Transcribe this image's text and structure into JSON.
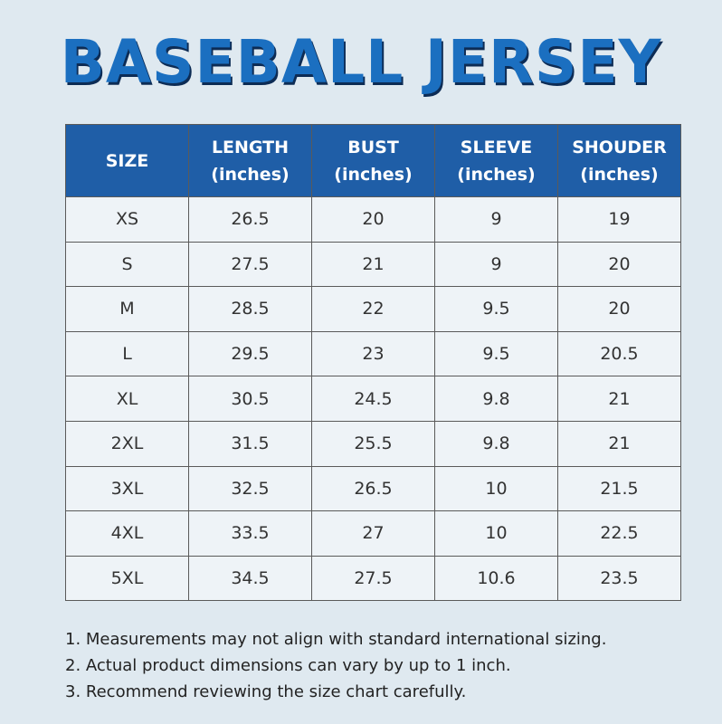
{
  "header": {
    "title": "BASEBALL JERSEY"
  },
  "table": {
    "columns": [
      {
        "label": "SIZE"
      },
      {
        "label": "LENGTH",
        "unit": "(inches)"
      },
      {
        "label": "BUST",
        "unit": "(inches)"
      },
      {
        "label": "SLEEVE",
        "unit": "(inches)"
      },
      {
        "label": "SHOUDER",
        "unit": "(inches)"
      }
    ],
    "rows": [
      [
        "XS",
        "26.5",
        "20",
        "9",
        "19"
      ],
      [
        "S",
        "27.5",
        "21",
        "9",
        "20"
      ],
      [
        "M",
        "28.5",
        "22",
        "9.5",
        "20"
      ],
      [
        "L",
        "29.5",
        "23",
        "9.5",
        "20.5"
      ],
      [
        "XL",
        "30.5",
        "24.5",
        "9.8",
        "21"
      ],
      [
        "2XL",
        "31.5",
        "25.5",
        "9.8",
        "21"
      ],
      [
        "3XL",
        "32.5",
        "26.5",
        "10",
        "21.5"
      ],
      [
        "4XL",
        "33.5",
        "27",
        "10",
        "22.5"
      ],
      [
        "5XL",
        "34.5",
        "27.5",
        "10.6",
        "23.5"
      ]
    ]
  },
  "notes": [
    "1. Measurements may not align with standard international sizing.",
    "2. Actual product dimensions can vary by up to 1 inch.",
    "3. Recommend reviewing the size chart carefully."
  ]
}
